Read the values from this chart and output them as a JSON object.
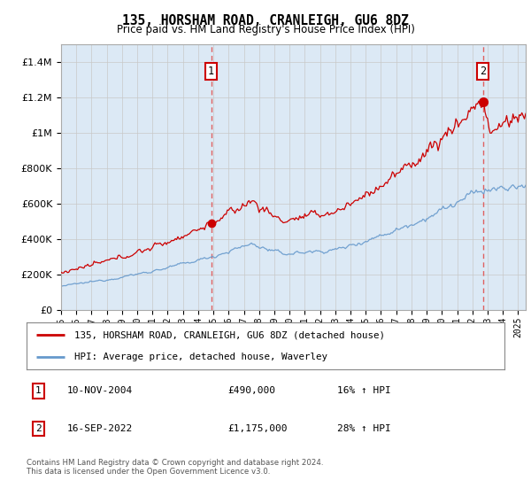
{
  "title": "135, HORSHAM ROAD, CRANLEIGH, GU6 8DZ",
  "subtitle": "Price paid vs. HM Land Registry's House Price Index (HPI)",
  "plot_background": "#dce9f5",
  "legend_line1": "135, HORSHAM ROAD, CRANLEIGH, GU6 8DZ (detached house)",
  "legend_line2": "HPI: Average price, detached house, Waverley",
  "annotation1_date": "10-NOV-2004",
  "annotation1_price": "£490,000",
  "annotation1_hpi": "16% ↑ HPI",
  "annotation2_date": "16-SEP-2022",
  "annotation2_price": "£1,175,000",
  "annotation2_hpi": "28% ↑ HPI",
  "footer": "Contains HM Land Registry data © Crown copyright and database right 2024.\nThis data is licensed under the Open Government Licence v3.0.",
  "ylim": [
    0,
    1500000
  ],
  "red_color": "#cc0000",
  "blue_color": "#6699cc",
  "marker1_x": 2004.85,
  "marker1_y": 490000,
  "marker2_x": 2022.71,
  "marker2_y": 1175000,
  "yticks": [
    0,
    200000,
    400000,
    600000,
    800000,
    1000000,
    1200000,
    1400000
  ],
  "xlim_start": 1995,
  "xlim_end": 2025.5
}
